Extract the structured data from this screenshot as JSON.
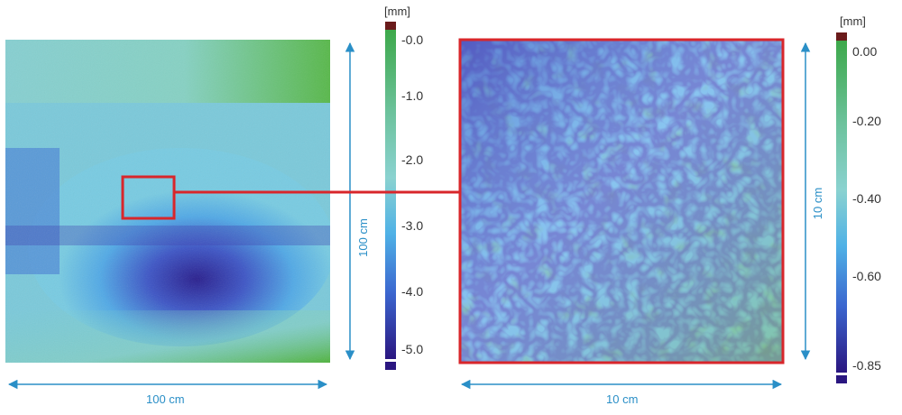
{
  "left_map": {
    "colorbar": {
      "unit": "[mm]",
      "ticks": [
        "-0.0",
        "-1.0",
        "-2.0",
        "-3.0",
        "-4.0",
        "-5.0"
      ]
    },
    "width_label": "100 cm",
    "height_label": "100 cm"
  },
  "right_map": {
    "colorbar": {
      "unit": "[mm]",
      "ticks": [
        "0.00",
        "-0.20",
        "-0.40",
        "-0.60",
        "-0.85"
      ]
    },
    "width_label": "10 cm",
    "height_label": "10 cm"
  },
  "colors": {
    "highlight": "#d8262b",
    "dimension": "#2a8fc7",
    "scale_top": "#6a1b1b",
    "green": "#4caf3a",
    "teal": "#7ccfc2",
    "light_blue": "#4fb1e6",
    "blue": "#3d6fd3",
    "dark_blue": "#2a1f86"
  }
}
